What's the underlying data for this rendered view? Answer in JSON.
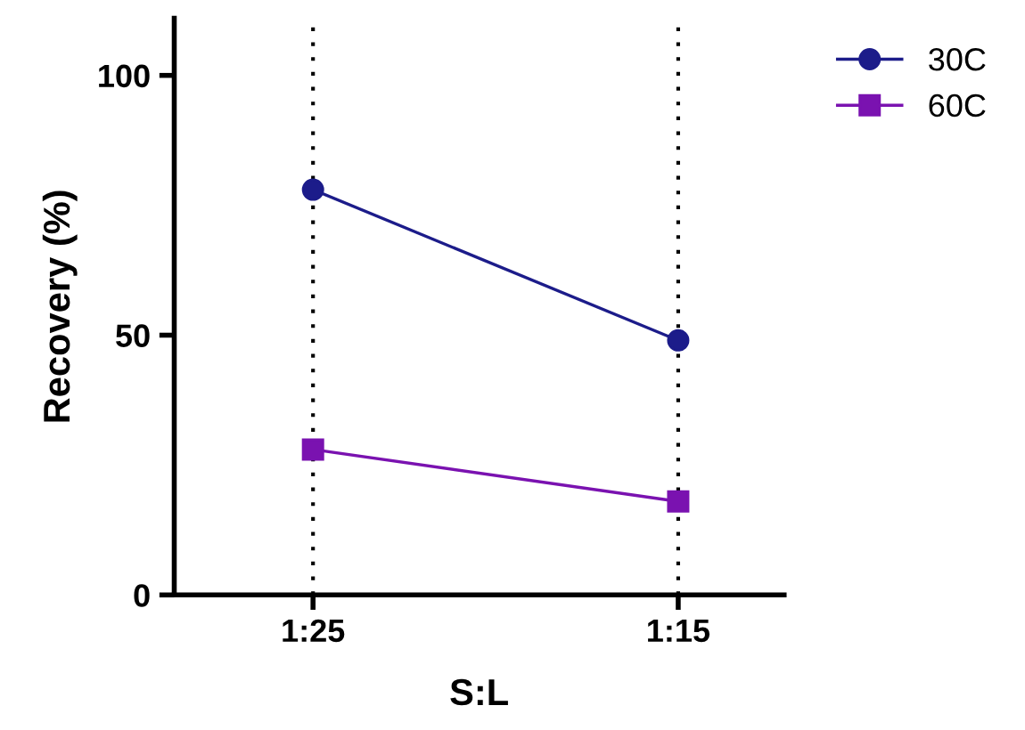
{
  "chart_data": {
    "type": "line",
    "xlabel": "S:L",
    "ylabel": "Recovery (%)",
    "categories": [
      "1:25",
      "1:15"
    ],
    "series": [
      {
        "name": "30C",
        "color": "#1c1c8a",
        "values": [
          78,
          49
        ],
        "marker": "circle"
      },
      {
        "name": "60C",
        "color": "#7a12b0",
        "values": [
          28,
          18
        ],
        "marker": "square"
      }
    ],
    "ylim": [
      0,
      111
    ],
    "yticks": [
      0,
      50,
      100
    ],
    "grid": "x",
    "legend": "top right",
    "line_style": "solid"
  }
}
